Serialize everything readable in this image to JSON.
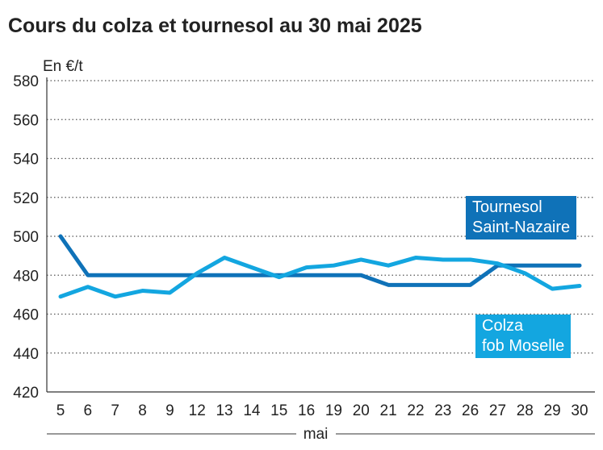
{
  "title": "Cours du colza et tournesol au 30 mai 2025",
  "chart_data": {
    "type": "line",
    "title": "Cours du colza et tournesol au 30 mai 2025",
    "ylabel": "En €/t",
    "xlabel": "mai",
    "ylim": [
      420,
      580
    ],
    "yticks": [
      420,
      440,
      460,
      480,
      500,
      520,
      540,
      560,
      580
    ],
    "grid": true,
    "categories": [
      "5",
      "6",
      "7",
      "8",
      "9",
      "12",
      "13",
      "14",
      "15",
      "16",
      "19",
      "20",
      "21",
      "22",
      "23",
      "26",
      "27",
      "28",
      "29",
      "30"
    ],
    "series": [
      {
        "name": "Tournesol Saint-Nazaire",
        "label_lines": [
          "Tournesol",
          "Saint-Nazaire"
        ],
        "color": "#0f72b8",
        "values": [
          500,
          480,
          480,
          480,
          480,
          480,
          480,
          480,
          480,
          480,
          480,
          480,
          475,
          475,
          475,
          475,
          485,
          485,
          485,
          485
        ]
      },
      {
        "name": "Colza fob Moselle",
        "label_lines": [
          "Colza",
          "fob Moselle"
        ],
        "color": "#13a6e0",
        "values": [
          469,
          474,
          469,
          472,
          471,
          481,
          489,
          484,
          479,
          484,
          485,
          488,
          485,
          489,
          488,
          488,
          486,
          481,
          473,
          474.5
        ]
      }
    ]
  }
}
